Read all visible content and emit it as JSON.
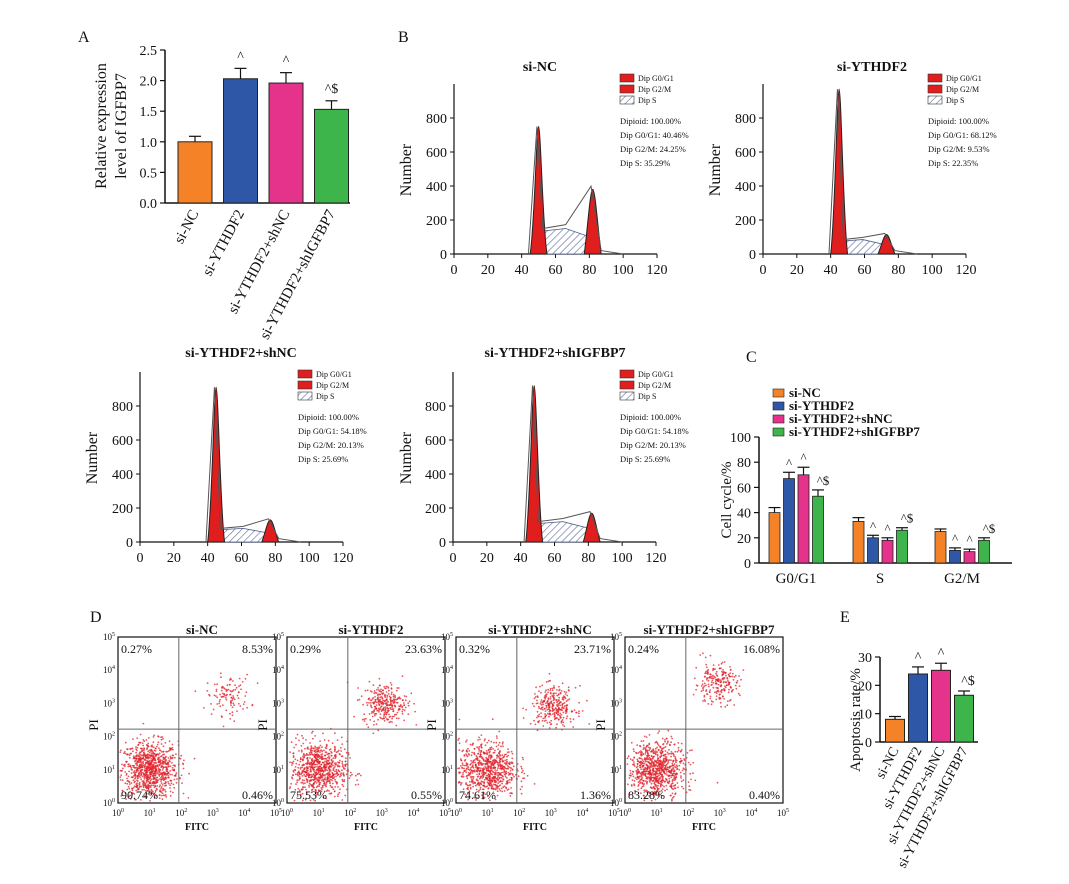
{
  "colors": {
    "si_nc": "#f58226",
    "si_ythdf2": "#2e57a8",
    "si_ythdf2_shnc": "#e5338c",
    "si_ythdf2_shigfbp7": "#3db54a",
    "histogram_peak": "#e01e1e",
    "flow_dots": "#e0202a"
  },
  "panel_labels": {
    "a": "A",
    "b": "B",
    "c": "C",
    "d": "D",
    "e": "E"
  },
  "chart_data": [
    {
      "id": "A",
      "type": "bar",
      "categories": [
        "si-NC",
        "si-YTHDF2",
        "si-YTHDF2+shNC",
        "si-YTHDF2+shIGFBP7"
      ],
      "values": [
        1.0,
        2.03,
        1.96,
        1.53
      ],
      "errors": [
        0.09,
        0.17,
        0.17,
        0.14
      ],
      "annotations": [
        "",
        "^",
        "^",
        "^$"
      ],
      "ylabel_lines": [
        "Relative expression",
        "level of IGFBP7"
      ],
      "ylim": [
        0,
        2.5
      ],
      "yticks": [
        "0.0",
        "0.5",
        "1.0",
        "1.5",
        "2.0",
        "2.5"
      ]
    },
    {
      "id": "B",
      "type": "area",
      "xlabel": "",
      "ylabel": "Number",
      "xlim": [
        0,
        120
      ],
      "ylim": [
        0,
        1000
      ],
      "xticks": [
        "0",
        "20",
        "40",
        "60",
        "80",
        "100",
        "120"
      ],
      "yticks": [
        "0",
        "200",
        "400",
        "600",
        "800"
      ],
      "legend": [
        "Dip G0/G1",
        "Dip G2/M",
        "Dip S"
      ],
      "series": [
        {
          "name": "si-NC",
          "g1_peak_x": 50,
          "g1_peak_y": 750,
          "g2_peak_x": 82,
          "g2_peak_y": 380,
          "s_level": 150,
          "stats": [
            "Dipioid: 100.00%",
            "Dip G0/G1: 40.46%",
            "Dip G2/M: 24.25%",
            "Dip S: 35.29%"
          ]
        },
        {
          "name": "si-YTHDF2",
          "g1_peak_x": 45,
          "g1_peak_y": 970,
          "g2_peak_x": 73,
          "g2_peak_y": 115,
          "s_level": 85,
          "stats": [
            "Dipioid: 100.00%",
            "Dip G0/G1: 68.12%",
            "Dip G2/M: 9.53%",
            "Dip S: 22.35%"
          ]
        },
        {
          "name": "si-YTHDF2+shNC",
          "g1_peak_x": 45,
          "g1_peak_y": 910,
          "g2_peak_x": 77,
          "g2_peak_y": 130,
          "s_level": 80,
          "stats": [
            "Dipioid: 100.00%",
            "Dip G0/G1: 54.18%",
            "Dip G2/M: 20.13%",
            "Dip S: 25.69%"
          ]
        },
        {
          "name": "si-YTHDF2+shIGFBP7",
          "g1_peak_x": 48,
          "g1_peak_y": 920,
          "g2_peak_x": 82,
          "g2_peak_y": 170,
          "s_level": 120,
          "stats": [
            "Dipioid: 100.00%",
            "Dip G0/G1: 54.18%",
            "Dip G2/M: 20.13%",
            "Dip S: 25.69%"
          ]
        }
      ]
    },
    {
      "id": "C",
      "type": "bar",
      "categories": [
        "G0/G1",
        "S",
        "G2/M"
      ],
      "ylabel": "Cell cycle/%",
      "ylim": [
        0,
        100
      ],
      "yticks": [
        "0",
        "20",
        "40",
        "60",
        "80",
        "100"
      ],
      "legend_position": "top-left",
      "series": [
        {
          "name": "si-NC",
          "values": [
            40,
            33,
            25
          ],
          "errors": [
            4,
            3,
            2
          ],
          "annotations": [
            "",
            "",
            ""
          ]
        },
        {
          "name": "si-YTHDF2",
          "values": [
            67,
            20,
            10
          ],
          "errors": [
            5,
            2,
            2
          ],
          "annotations": [
            "^",
            "^",
            "^"
          ]
        },
        {
          "name": "si-YTHDF2+shNC",
          "values": [
            70,
            18,
            9
          ],
          "errors": [
            6,
            2,
            2
          ],
          "annotations": [
            "^",
            "^",
            "^"
          ]
        },
        {
          "name": "si-YTHDF2+shIGFBP7",
          "values": [
            53,
            26,
            18
          ],
          "errors": [
            5,
            2,
            2
          ],
          "annotations": [
            "^$",
            "^$",
            "^$"
          ]
        }
      ]
    },
    {
      "id": "D",
      "type": "scatter",
      "xlabel": "FITC",
      "ylabel": "PI",
      "x_scale": "log",
      "y_scale": "log",
      "axis_ticks": [
        "10^0",
        "10^1",
        "10^2",
        "10^3",
        "10^4",
        "10^5"
      ],
      "plots": [
        {
          "title": "si-NC",
          "upper_left": "0.27%",
          "upper_right": "8.53%",
          "lower_left": "90.74%",
          "lower_right": "0.46%"
        },
        {
          "title": "si-YTHDF2",
          "upper_left": "0.29%",
          "upper_right": "23.63%",
          "lower_left": "75.53%",
          "lower_right": "0.55%"
        },
        {
          "title": "si-YTHDF2+shNC",
          "upper_left": "0.32%",
          "upper_right": "23.71%",
          "lower_left": "74.61%",
          "lower_right": "1.36%"
        },
        {
          "title": "si-YTHDF2+shIGFBP7",
          "upper_left": "0.24%",
          "upper_right": "16.08%",
          "lower_left": "83.28%",
          "lower_right": "0.40%"
        }
      ]
    },
    {
      "id": "E",
      "type": "bar",
      "categories": [
        "si-NC",
        "si-YTHDF2",
        "si-YTHDF2+shNC",
        "si-YTHDF2+shIGFBP7"
      ],
      "values": [
        8,
        24,
        25.3,
        16.5
      ],
      "errors": [
        1,
        2.5,
        2.5,
        1.5
      ],
      "annotations": [
        "",
        "^",
        "^",
        "^$"
      ],
      "ylabel": "Apoptosis rate/%",
      "ylim": [
        0,
        30
      ],
      "yticks": [
        "0",
        "10",
        "20",
        "30"
      ]
    }
  ]
}
